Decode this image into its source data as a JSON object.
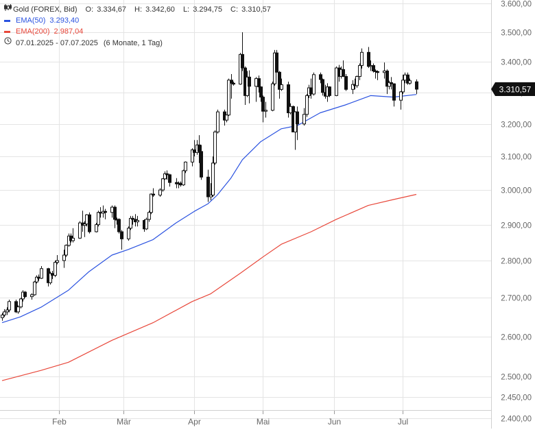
{
  "legend": {
    "instrument": "Gold (FOREX, Bid)",
    "ohlc": {
      "o_label": "O:",
      "o": "3.334,67",
      "h_label": "H:",
      "h": "3.342,60",
      "l_label": "L:",
      "l": "3.294,75",
      "c_label": "C:",
      "c": "3.310,57"
    },
    "ema50": {
      "label": "EMA(50)",
      "value": "3.293,40"
    },
    "ema200": {
      "label": "EMA(200)",
      "value": "2.987,04"
    },
    "period": {
      "range": "07.01.2025 - 07.07.2025",
      "note": "(6 Monate, 1 Tag)"
    }
  },
  "last_price_label": "3.310,57",
  "chart_data": {
    "type": "candlestick",
    "y_scale": "log",
    "ylim": [
      2400,
      3600
    ],
    "y_ticks": [
      {
        "v": 2400,
        "label": "2.400,00"
      },
      {
        "v": 2450,
        "label": "2.450,00"
      },
      {
        "v": 2500,
        "label": "2.500,00"
      },
      {
        "v": 2600,
        "label": "2.600,00"
      },
      {
        "v": 2700,
        "label": "2.700,00"
      },
      {
        "v": 2800,
        "label": "2.800,00"
      },
      {
        "v": 2900,
        "label": "2.900,00"
      },
      {
        "v": 3000,
        "label": "3.000,00"
      },
      {
        "v": 3100,
        "label": "3.100,00"
      },
      {
        "v": 3200,
        "label": "3.200,00"
      },
      {
        "v": 3300,
        "label": "3.300,00"
      },
      {
        "v": 3400,
        "label": "3.400,00"
      },
      {
        "v": 3500,
        "label": "3.500,00"
      },
      {
        "v": 3600,
        "label": "3.600,00"
      }
    ],
    "x_ticks": [
      {
        "date": "2025-02-01",
        "label": "Feb"
      },
      {
        "date": "2025-03-01",
        "label": "Mär"
      },
      {
        "date": "2025-04-01",
        "label": "Apr"
      },
      {
        "date": "2025-05-01",
        "label": "Mai"
      },
      {
        "date": "2025-06-01",
        "label": "Jun"
      },
      {
        "date": "2025-07-01",
        "label": "Jul"
      }
    ],
    "x_range": [
      "2025-01-07",
      "2025-07-07"
    ],
    "grid": true,
    "colors": {
      "candle": "#111111",
      "ema50": "#2a52e0",
      "ema200": "#e8473a",
      "grid": "#e4e4e4",
      "axis_text": "#666666",
      "price_label_bg": "#111111"
    },
    "series": [
      {
        "name": "EMA(50)",
        "anchors": [
          [
            "2025-01-07",
            2635
          ],
          [
            "2025-01-15",
            2650
          ],
          [
            "2025-01-24",
            2675
          ],
          [
            "2025-02-05",
            2720
          ],
          [
            "2025-02-14",
            2770
          ],
          [
            "2025-02-24",
            2815
          ],
          [
            "2025-03-03",
            2830
          ],
          [
            "2025-03-14",
            2858
          ],
          [
            "2025-03-24",
            2905
          ],
          [
            "2025-04-01",
            2938
          ],
          [
            "2025-04-07",
            2960
          ],
          [
            "2025-04-11",
            2985
          ],
          [
            "2025-04-17",
            3035
          ],
          [
            "2025-04-22",
            3090
          ],
          [
            "2025-04-30",
            3145
          ],
          [
            "2025-05-09",
            3185
          ],
          [
            "2025-05-16",
            3195
          ],
          [
            "2025-05-26",
            3235
          ],
          [
            "2025-06-06",
            3260
          ],
          [
            "2025-06-17",
            3290
          ],
          [
            "2025-06-27",
            3285
          ],
          [
            "2025-07-07",
            3293.4
          ]
        ]
      },
      {
        "name": "EMA(200)",
        "anchors": [
          [
            "2025-01-07",
            2490
          ],
          [
            "2025-01-24",
            2515
          ],
          [
            "2025-02-05",
            2535
          ],
          [
            "2025-02-24",
            2590
          ],
          [
            "2025-03-14",
            2635
          ],
          [
            "2025-03-31",
            2690
          ],
          [
            "2025-04-08",
            2710
          ],
          [
            "2025-04-21",
            2765
          ],
          [
            "2025-05-01",
            2810
          ],
          [
            "2025-05-09",
            2845
          ],
          [
            "2025-05-22",
            2880
          ],
          [
            "2025-06-02",
            2915
          ],
          [
            "2025-06-16",
            2955
          ],
          [
            "2025-06-27",
            2972
          ],
          [
            "2025-07-07",
            2987.04
          ]
        ]
      }
    ],
    "candles": [
      [
        "2025-01-07",
        2648,
        2660,
        2640,
        2655
      ],
      [
        "2025-01-08",
        2655,
        2670,
        2650,
        2663
      ],
      [
        "2025-01-09",
        2663,
        2675,
        2655,
        2668
      ],
      [
        "2025-01-10",
        2668,
        2695,
        2662,
        2690
      ],
      [
        "2025-01-13",
        2690,
        2695,
        2660,
        2663
      ],
      [
        "2025-01-14",
        2663,
        2680,
        2658,
        2676
      ],
      [
        "2025-01-15",
        2676,
        2700,
        2672,
        2697
      ],
      [
        "2025-01-16",
        2697,
        2720,
        2690,
        2715
      ],
      [
        "2025-01-17",
        2715,
        2718,
        2700,
        2703
      ],
      [
        "2025-01-20",
        2703,
        2712,
        2695,
        2708
      ],
      [
        "2025-01-21",
        2708,
        2745,
        2705,
        2742
      ],
      [
        "2025-01-22",
        2742,
        2760,
        2738,
        2755
      ],
      [
        "2025-01-23",
        2755,
        2762,
        2745,
        2752
      ],
      [
        "2025-01-24",
        2752,
        2785,
        2750,
        2778
      ],
      [
        "2025-01-27",
        2778,
        2780,
        2730,
        2740
      ],
      [
        "2025-01-28",
        2740,
        2770,
        2735,
        2765
      ],
      [
        "2025-01-29",
        2765,
        2772,
        2750,
        2760
      ],
      [
        "2025-01-30",
        2760,
        2800,
        2755,
        2795
      ],
      [
        "2025-01-31",
        2795,
        2815,
        2790,
        2800
      ],
      [
        "2025-02-03",
        2800,
        2830,
        2780,
        2815
      ],
      [
        "2025-02-04",
        2815,
        2845,
        2810,
        2842
      ],
      [
        "2025-02-05",
        2842,
        2875,
        2838,
        2868
      ],
      [
        "2025-02-06",
        2868,
        2875,
        2850,
        2855
      ],
      [
        "2025-02-07",
        2855,
        2890,
        2850,
        2862
      ],
      [
        "2025-02-10",
        2862,
        2910,
        2860,
        2905
      ],
      [
        "2025-02-11",
        2905,
        2940,
        2880,
        2898
      ],
      [
        "2025-02-12",
        2898,
        2910,
        2865,
        2902
      ],
      [
        "2025-02-13",
        2902,
        2930,
        2895,
        2928
      ],
      [
        "2025-02-14",
        2928,
        2935,
        2875,
        2880
      ],
      [
        "2025-02-17",
        2880,
        2905,
        2878,
        2900
      ],
      [
        "2025-02-18",
        2900,
        2940,
        2895,
        2935
      ],
      [
        "2025-02-19",
        2935,
        2950,
        2920,
        2933
      ],
      [
        "2025-02-20",
        2933,
        2955,
        2920,
        2938
      ],
      [
        "2025-02-21",
        2938,
        2945,
        2915,
        2935
      ],
      [
        "2025-02-24",
        2935,
        2955,
        2920,
        2950
      ],
      [
        "2025-02-25",
        2950,
        2955,
        2890,
        2915
      ],
      [
        "2025-02-26",
        2915,
        2920,
        2900,
        2915
      ],
      [
        "2025-02-27",
        2915,
        2918,
        2875,
        2880
      ],
      [
        "2025-02-28",
        2880,
        2885,
        2830,
        2860
      ],
      [
        "2025-03-03",
        2860,
        2895,
        2855,
        2890
      ],
      [
        "2025-03-04",
        2890,
        2925,
        2885,
        2918
      ],
      [
        "2025-03-05",
        2918,
        2925,
        2900,
        2915
      ],
      [
        "2025-03-06",
        2915,
        2930,
        2895,
        2908
      ],
      [
        "2025-03-07",
        2908,
        2925,
        2895,
        2912
      ],
      [
        "2025-03-10",
        2912,
        2915,
        2880,
        2888
      ],
      [
        "2025-03-11",
        2888,
        2920,
        2885,
        2915
      ],
      [
        "2025-03-12",
        2915,
        2940,
        2908,
        2935
      ],
      [
        "2025-03-13",
        2935,
        2990,
        2930,
        2988
      ],
      [
        "2025-03-14",
        2988,
        3005,
        2980,
        2985
      ],
      [
        "2025-03-17",
        2985,
        3005,
        2980,
        3000
      ],
      [
        "2025-03-18",
        3000,
        3035,
        2995,
        3033
      ],
      [
        "2025-03-19",
        3033,
        3055,
        3030,
        3048
      ],
      [
        "2025-03-20",
        3048,
        3058,
        3030,
        3045
      ],
      [
        "2025-03-21",
        3045,
        3048,
        3010,
        3022
      ],
      [
        "2025-03-24",
        3022,
        3035,
        3005,
        3018
      ],
      [
        "2025-03-25",
        3018,
        3025,
        3005,
        3020
      ],
      [
        "2025-03-26",
        3020,
        3025,
        3010,
        3015
      ],
      [
        "2025-03-27",
        3015,
        3060,
        3012,
        3057
      ],
      [
        "2025-03-28",
        3057,
        3085,
        3050,
        3083
      ],
      [
        "2025-03-31",
        3083,
        3125,
        3070,
        3120
      ],
      [
        "2025-04-01",
        3120,
        3150,
        3100,
        3112
      ],
      [
        "2025-04-02",
        3112,
        3150,
        3105,
        3135
      ],
      [
        "2025-04-03",
        3135,
        3165,
        3080,
        3115
      ],
      [
        "2025-04-04",
        3115,
        3135,
        3030,
        3038
      ],
      [
        "2025-04-07",
        3038,
        3060,
        2965,
        2980
      ],
      [
        "2025-04-08",
        2980,
        3020,
        2970,
        2985
      ],
      [
        "2025-04-09",
        2985,
        3100,
        2980,
        3080
      ],
      [
        "2025-04-10",
        3080,
        3180,
        3075,
        3175
      ],
      [
        "2025-04-11",
        3175,
        3245,
        3170,
        3238
      ],
      [
        "2025-04-14",
        3238,
        3245,
        3195,
        3212
      ],
      [
        "2025-04-15",
        3212,
        3230,
        3205,
        3228
      ],
      [
        "2025-04-16",
        3228,
        3345,
        3225,
        3340
      ],
      [
        "2025-04-17",
        3340,
        3360,
        3280,
        3330
      ],
      [
        "2025-04-18",
        3330,
        3335,
        3322,
        3327
      ],
      [
        "2025-04-21",
        3327,
        3430,
        3325,
        3425
      ],
      [
        "2025-04-22",
        3425,
        3500,
        3370,
        3380
      ],
      [
        "2025-04-23",
        3380,
        3385,
        3260,
        3290
      ],
      [
        "2025-04-24",
        3290,
        3370,
        3285,
        3350
      ],
      [
        "2025-04-25",
        3350,
        3372,
        3265,
        3320
      ],
      [
        "2025-04-28",
        3320,
        3350,
        3270,
        3345
      ],
      [
        "2025-04-29",
        3345,
        3355,
        3300,
        3318
      ],
      [
        "2025-04-30",
        3318,
        3320,
        3270,
        3285
      ],
      [
        "2025-05-01",
        3285,
        3290,
        3205,
        3240
      ],
      [
        "2025-05-02",
        3240,
        3270,
        3220,
        3243
      ],
      [
        "2025-05-05",
        3243,
        3335,
        3240,
        3328
      ],
      [
        "2025-05-06",
        3328,
        3440,
        3322,
        3430
      ],
      [
        "2025-05-07",
        3430,
        3440,
        3370,
        3366
      ],
      [
        "2025-05-08",
        3366,
        3370,
        3280,
        3310
      ],
      [
        "2025-05-09",
        3310,
        3345,
        3305,
        3325
      ],
      [
        "2025-05-12",
        3325,
        3335,
        3220,
        3235
      ],
      [
        "2025-05-13",
        3235,
        3265,
        3230,
        3255
      ],
      [
        "2025-05-14",
        3255,
        3258,
        3175,
        3175
      ],
      [
        "2025-05-15",
        3175,
        3240,
        3120,
        3238
      ],
      [
        "2025-05-16",
        3238,
        3255,
        3150,
        3200
      ],
      [
        "2025-05-19",
        3200,
        3250,
        3195,
        3230
      ],
      [
        "2025-05-20",
        3230,
        3295,
        3222,
        3290
      ],
      [
        "2025-05-21",
        3290,
        3325,
        3282,
        3315
      ],
      [
        "2025-05-22",
        3315,
        3345,
        3280,
        3295
      ],
      [
        "2025-05-23",
        3295,
        3365,
        3290,
        3358
      ],
      [
        "2025-05-26",
        3358,
        3365,
        3330,
        3342
      ],
      [
        "2025-05-27",
        3342,
        3345,
        3290,
        3300
      ],
      [
        "2025-05-28",
        3300,
        3325,
        3280,
        3288
      ],
      [
        "2025-05-29",
        3288,
        3330,
        3270,
        3318
      ],
      [
        "2025-05-30",
        3318,
        3320,
        3285,
        3290
      ],
      [
        "2025-06-02",
        3290,
        3385,
        3288,
        3380
      ],
      [
        "2025-06-03",
        3380,
        3390,
        3335,
        3352
      ],
      [
        "2025-06-04",
        3352,
        3385,
        3345,
        3375
      ],
      [
        "2025-06-05",
        3375,
        3405,
        3350,
        3352
      ],
      [
        "2025-06-06",
        3352,
        3360,
        3305,
        3310
      ],
      [
        "2025-06-09",
        3310,
        3340,
        3295,
        3326
      ],
      [
        "2025-06-10",
        3326,
        3345,
        3310,
        3322
      ],
      [
        "2025-06-11",
        3322,
        3355,
        3315,
        3352
      ],
      [
        "2025-06-12",
        3352,
        3395,
        3340,
        3388
      ],
      [
        "2025-06-13",
        3388,
        3445,
        3378,
        3432
      ],
      [
        "2025-06-16",
        3432,
        3450,
        3380,
        3385
      ],
      [
        "2025-06-17",
        3385,
        3405,
        3370,
        3388
      ],
      [
        "2025-06-18",
        3388,
        3395,
        3365,
        3370
      ],
      [
        "2025-06-19",
        3370,
        3375,
        3345,
        3368
      ],
      [
        "2025-06-20",
        3368,
        3372,
        3340,
        3365
      ],
      [
        "2025-06-23",
        3365,
        3398,
        3345,
        3370
      ],
      [
        "2025-06-24",
        3370,
        3375,
        3295,
        3320
      ],
      [
        "2025-06-25",
        3320,
        3338,
        3310,
        3332
      ],
      [
        "2025-06-26",
        3332,
        3350,
        3310,
        3328
      ],
      [
        "2025-06-27",
        3328,
        3330,
        3255,
        3275
      ],
      [
        "2025-06-30",
        3275,
        3305,
        3245,
        3302
      ],
      [
        "2025-07-01",
        3302,
        3358,
        3295,
        3340
      ],
      [
        "2025-07-02",
        3340,
        3365,
        3330,
        3357
      ],
      [
        "2025-07-03",
        3357,
        3365,
        3325,
        3330
      ],
      [
        "2025-07-04",
        3330,
        3345,
        3325,
        3338
      ],
      [
        "2025-07-07",
        3334.67,
        3342.6,
        3294.75,
        3310.57
      ]
    ]
  }
}
